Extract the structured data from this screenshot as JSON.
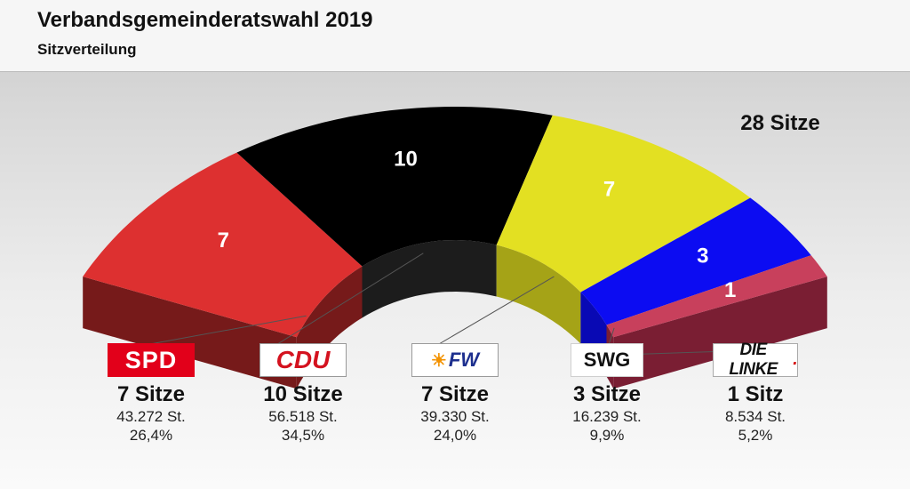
{
  "header": {
    "title": "Verbandsgemeinderatswahl 2019",
    "subtitle": "Sitzverteilung"
  },
  "chart_data": {
    "type": "pie",
    "variant": "half-donut 3D seat distribution",
    "total_label": "28 Sitze",
    "total_seats": 28,
    "series": [
      {
        "name": "SPD",
        "value": 7,
        "color": "#dd3030",
        "side_color": "#761a1a",
        "seats_label": "7 Sitze",
        "votes": "43.272 St.",
        "percent": "26,4%"
      },
      {
        "name": "CDU",
        "value": 10,
        "color": "#000000",
        "side_color": "#1c1c1c",
        "seats_label": "10 Sitze",
        "votes": "56.518 St.",
        "percent": "34,5%"
      },
      {
        "name": "FW",
        "value": 7,
        "color": "#e3e022",
        "side_color": "#a5a317",
        "seats_label": "7 Sitze",
        "votes": "39.330 St.",
        "percent": "24,0%"
      },
      {
        "name": "SWG",
        "value": 3,
        "color": "#0c0cf2",
        "side_color": "#0909b4",
        "seats_label": "3 Sitze",
        "votes": "16.239 St.",
        "percent": "9,9%"
      },
      {
        "name": "DIE LINKE.",
        "value": 1,
        "color": "#c8405c",
        "side_color": "#7a1e33",
        "seats_label": "1 Sitz",
        "votes": "8.534 St.",
        "percent": "5,2%"
      }
    ]
  },
  "legend": {
    "spd_logo": "SPD",
    "cdu_logo": "CDU",
    "fw_logo": "FW",
    "swg_logo": "SWG",
    "linke_logo": "DIE LINKE"
  }
}
